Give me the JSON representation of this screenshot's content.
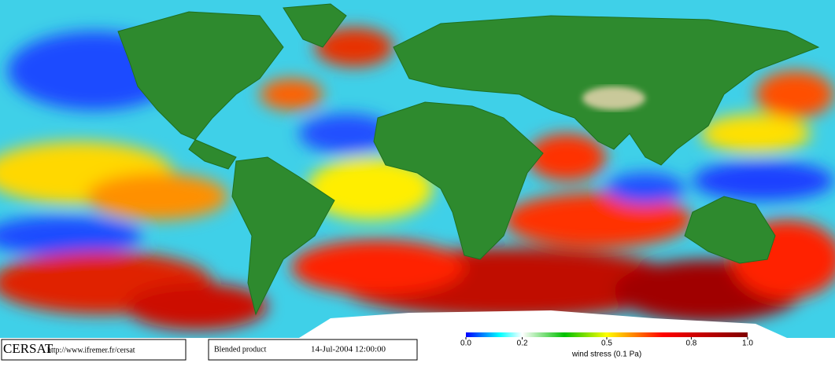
{
  "footer": {
    "logo": "CERSAT",
    "url": "http://www.ifremer.fr/cersat",
    "product": "Blended product",
    "timestamp": "14-Jul-2004 12:00:00"
  },
  "colorbar": {
    "label": "wind stress (0.1 Pa)",
    "range": [
      0,
      1
    ],
    "ticks": [
      {
        "value": 0,
        "label": "0.0"
      },
      0.2,
      0.5,
      0.8,
      {
        "value": 1,
        "label": "1.0"
      }
    ]
  }
}
